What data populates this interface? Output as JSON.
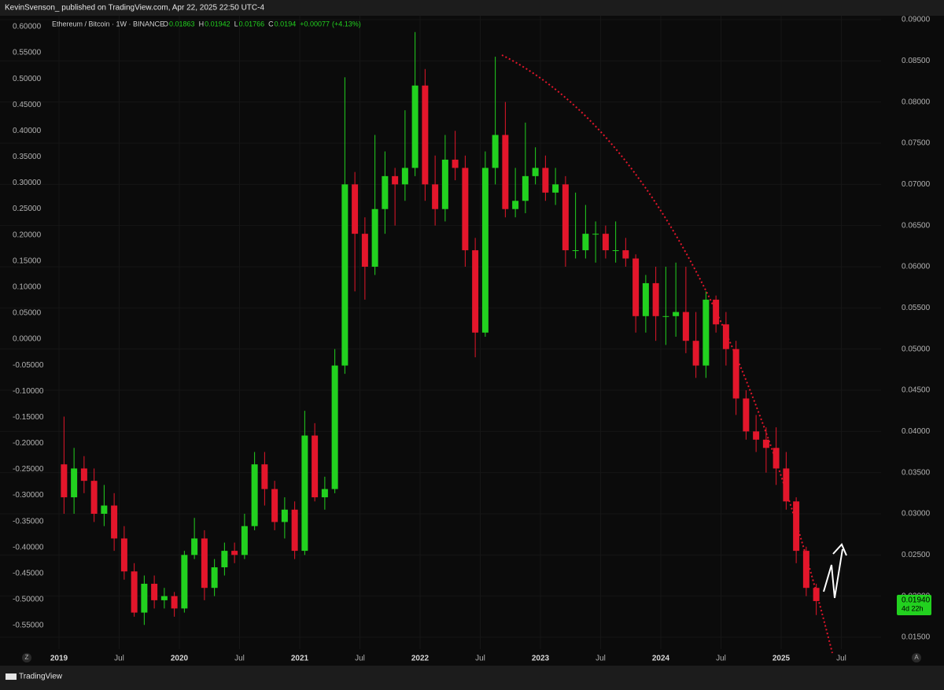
{
  "header": {
    "text": "KevinSvenson_ published on TradingView.com, Apr 22, 2025 22:50 UTC-4"
  },
  "footer": {
    "brand": "TradingView",
    "left_button": "Z",
    "right_button": "A"
  },
  "chart_data": {
    "type": "candlestick",
    "symbol": "Ethereum / Bitcoin · 1W · BINANCE",
    "legend_values": [
      {
        "label": "O",
        "value": 0.01863
      },
      {
        "label": "H",
        "value": 0.01942
      },
      {
        "label": "L",
        "value": 0.01766
      },
      {
        "label": "C",
        "value": 0.0194
      }
    ],
    "change": {
      "value": 0.00077,
      "label": "+0.00077"
    },
    "change_pct": {
      "value": 4.13,
      "label": "(+4.13%)"
    },
    "last_price": {
      "value": 0.0194,
      "label": "0.01940"
    },
    "countdown": "4d 22h",
    "up_color": "#22d11f",
    "down_color": "#e3162b",
    "grid": true,
    "categories": [
      "2019",
      null,
      null,
      null,
      null,
      null,
      "Jul",
      null,
      null,
      null,
      null,
      null,
      "2020",
      null,
      null,
      null,
      null,
      null,
      "Jul",
      null,
      null,
      null,
      null,
      null,
      "2021",
      null,
      null,
      null,
      null,
      null,
      "Jul",
      null,
      null,
      null,
      null,
      null,
      "2022",
      null,
      null,
      null,
      null,
      null,
      "Jul",
      null,
      null,
      null,
      null,
      null,
      "2023",
      null,
      null,
      null,
      null,
      null,
      "Jul",
      null,
      null,
      null,
      null,
      null,
      "2024",
      null,
      null,
      null,
      null,
      null,
      "Jul",
      null,
      null,
      null,
      null,
      null,
      "2025",
      null,
      null,
      null,
      null,
      null,
      "Jul"
    ],
    "open": [
      0.036,
      0.032,
      0.0355,
      0.034,
      0.03,
      0.031,
      0.027,
      0.023,
      0.018,
      0.0215,
      0.0195,
      0.02,
      0.0185,
      0.025,
      0.027,
      0.021,
      0.0235,
      0.0255,
      0.025,
      0.0285,
      0.036,
      0.033,
      0.029,
      0.0305,
      0.0255,
      0.0395,
      0.032,
      0.033,
      0.048,
      0.07,
      0.064,
      0.06,
      0.067,
      0.071,
      0.07,
      0.072,
      0.082,
      0.07,
      0.067,
      0.073,
      0.072,
      0.062,
      0.052,
      0.072,
      0.076,
      0.067,
      0.068,
      0.071,
      0.072,
      0.069,
      0.07,
      0.062,
      0.062,
      0.064,
      0.064,
      0.062,
      0.062,
      0.061,
      0.054,
      0.058,
      0.054,
      0.054,
      0.0545,
      0.051,
      0.048,
      0.056,
      0.053,
      0.05,
      0.044,
      0.04,
      0.039,
      0.038,
      0.0355,
      0.0315,
      0.0255,
      0.021,
      null,
      null,
      null
    ],
    "high": [
      0.0418,
      0.038,
      0.037,
      0.0355,
      0.0335,
      0.0325,
      0.0285,
      0.024,
      0.0225,
      0.0225,
      0.021,
      0.0205,
      0.0255,
      0.0295,
      0.028,
      0.0245,
      0.0265,
      0.0265,
      0.03,
      0.0375,
      0.0375,
      0.034,
      0.032,
      0.0315,
      0.0425,
      0.041,
      0.0345,
      0.05,
      0.083,
      0.0715,
      0.066,
      0.076,
      0.074,
      0.072,
      0.079,
      0.0885,
      0.084,
      0.0735,
      0.076,
      0.0765,
      0.0735,
      0.0635,
      0.074,
      0.0855,
      0.08,
      0.072,
      0.0775,
      0.0745,
      0.0735,
      0.072,
      0.071,
      0.069,
      0.0675,
      0.0655,
      0.065,
      0.0655,
      0.0635,
      0.0615,
      0.059,
      0.06,
      0.06,
      0.0605,
      0.06,
      0.0545,
      0.057,
      0.0565,
      0.0545,
      0.051,
      0.045,
      0.042,
      0.0405,
      0.0405,
      0.0375,
      0.032,
      0.026,
      0.0215,
      null,
      null,
      null
    ],
    "low": [
      0.03,
      0.03,
      0.0325,
      0.029,
      0.0285,
      0.0255,
      0.022,
      0.0175,
      0.0165,
      0.0185,
      0.0185,
      0.0175,
      0.018,
      0.0245,
      0.0195,
      0.02,
      0.0225,
      0.024,
      0.0245,
      0.028,
      0.031,
      0.028,
      0.027,
      0.0245,
      0.025,
      0.0315,
      0.0305,
      0.0325,
      0.047,
      0.057,
      0.056,
      0.059,
      0.064,
      0.065,
      0.068,
      0.071,
      0.068,
      0.065,
      0.0655,
      0.0705,
      0.06,
      0.049,
      0.0515,
      0.07,
      0.066,
      0.066,
      0.0665,
      0.07,
      0.068,
      0.0675,
      0.06,
      0.061,
      0.061,
      0.0605,
      0.061,
      0.0605,
      0.06,
      0.052,
      0.052,
      0.051,
      0.0505,
      0.0515,
      0.0495,
      0.0465,
      0.0465,
      0.052,
      0.048,
      0.042,
      0.039,
      0.0375,
      0.035,
      0.0335,
      0.0305,
      0.024,
      0.02,
      0.0177,
      null,
      null,
      null
    ],
    "close": [
      0.032,
      0.0355,
      0.034,
      0.03,
      0.031,
      0.027,
      0.023,
      0.018,
      0.0215,
      0.0195,
      0.02,
      0.0185,
      0.025,
      0.027,
      0.021,
      0.0235,
      0.0255,
      0.025,
      0.0285,
      0.036,
      0.033,
      0.029,
      0.0305,
      0.0255,
      0.0395,
      0.032,
      0.033,
      0.048,
      0.07,
      0.064,
      0.06,
      0.067,
      0.071,
      0.07,
      0.072,
      0.082,
      0.07,
      0.067,
      0.073,
      0.072,
      0.062,
      0.052,
      0.072,
      0.076,
      0.067,
      0.068,
      0.071,
      0.072,
      0.069,
      0.07,
      0.062,
      0.062,
      0.064,
      0.064,
      0.062,
      0.062,
      0.061,
      0.054,
      0.058,
      0.054,
      0.054,
      0.0545,
      0.051,
      0.048,
      0.056,
      0.053,
      0.05,
      0.044,
      0.04,
      0.039,
      0.038,
      0.0355,
      0.0315,
      0.0255,
      0.021,
      0.0194,
      null,
      null,
      null
    ],
    "ylim": [
      0.015,
      0.09
    ],
    "yticks": [
      {
        "value": 0.015,
        "label": "0.01500"
      },
      {
        "value": 0.02,
        "label": "0.02000"
      },
      {
        "value": 0.025,
        "label": "0.02500"
      },
      {
        "value": 0.03,
        "label": "0.03000"
      },
      {
        "value": 0.035,
        "label": "0.03500"
      },
      {
        "value": 0.04,
        "label": "0.04000"
      },
      {
        "value": 0.045,
        "label": "0.04500"
      },
      {
        "value": 0.05,
        "label": "0.05000"
      },
      {
        "value": 0.055,
        "label": "0.05500"
      },
      {
        "value": 0.06,
        "label": "0.06000"
      },
      {
        "value": 0.065,
        "label": "0.06500"
      },
      {
        "value": 0.07,
        "label": "0.07000"
      },
      {
        "value": 0.075,
        "label": "0.07500"
      },
      {
        "value": 0.08,
        "label": "0.08000"
      },
      {
        "value": 0.085,
        "label": "0.08500"
      },
      {
        "value": 0.09,
        "label": "0.09000"
      }
    ],
    "y2lim": [
      -0.55,
      0.6
    ],
    "y2ticks": [
      {
        "value": 0.6,
        "label": "0.60000"
      },
      {
        "value": 0.55,
        "label": "0.55000"
      },
      {
        "value": 0.5,
        "label": "0.50000"
      },
      {
        "value": 0.45,
        "label": "0.45000"
      },
      {
        "value": 0.4,
        "label": "0.40000"
      },
      {
        "value": 0.35,
        "label": "0.35000"
      },
      {
        "value": 0.3,
        "label": "0.30000"
      },
      {
        "value": 0.25,
        "label": "0.25000"
      },
      {
        "value": 0.2,
        "label": "0.20000"
      },
      {
        "value": 0.15,
        "label": "0.15000"
      },
      {
        "value": 0.1,
        "label": "0.10000"
      },
      {
        "value": 0.05,
        "label": "0.05000"
      },
      {
        "value": 0,
        "label": "0.00000"
      },
      {
        "value": -0.05,
        "label": "-0.05000"
      },
      {
        "value": -0.1,
        "label": "-0.10000"
      },
      {
        "value": -0.15,
        "label": "-0.15000"
      },
      {
        "value": -0.2,
        "label": "-0.20000"
      },
      {
        "value": -0.25,
        "label": "-0.25000"
      },
      {
        "value": -0.3,
        "label": "-0.30000"
      },
      {
        "value": -0.35,
        "label": "-0.35000"
      },
      {
        "value": -0.4,
        "label": "-0.40000"
      },
      {
        "value": -0.45,
        "label": "-0.45000"
      },
      {
        "value": -0.5,
        "label": "-0.50000"
      },
      {
        "value": -0.55,
        "label": "-0.55000"
      }
    ]
  }
}
